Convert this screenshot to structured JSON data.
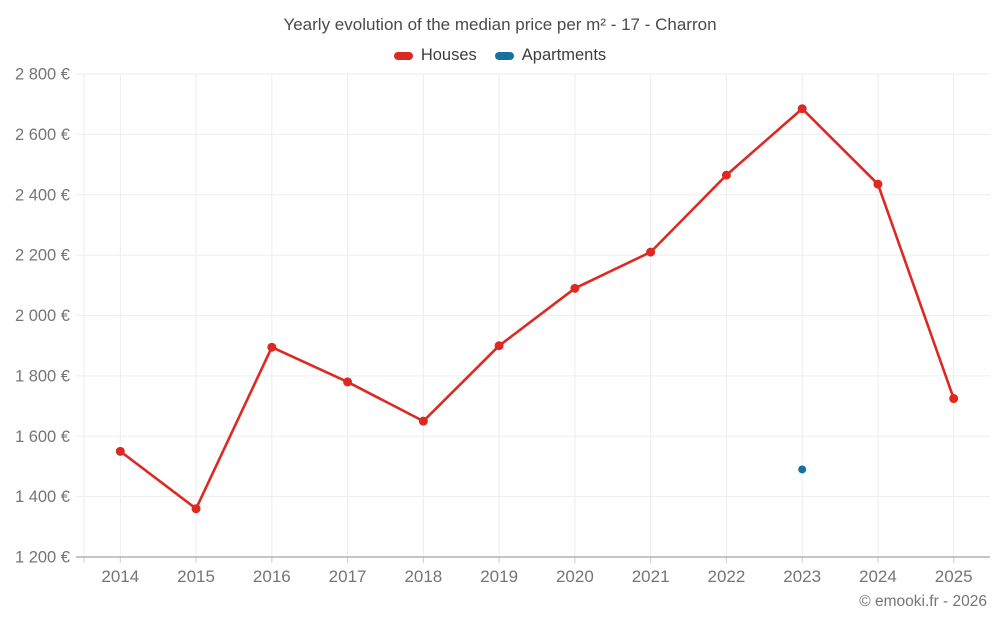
{
  "chart_data": {
    "type": "line",
    "title": "Yearly evolution of the median price per m² - 17 - Charron",
    "categories": [
      "2014",
      "2015",
      "2016",
      "2017",
      "2018",
      "2019",
      "2020",
      "2021",
      "2022",
      "2023",
      "2024",
      "2025"
    ],
    "series": [
      {
        "name": "Houses",
        "color": "#dc2a23",
        "marker_radius": 4.5,
        "values": [
          1550,
          1360,
          1895,
          1780,
          1650,
          1900,
          2090,
          2210,
          2465,
          2685,
          2435,
          1725
        ]
      },
      {
        "name": "Apartments",
        "color": "#16719f",
        "marker_radius": 4,
        "values": [
          null,
          null,
          null,
          null,
          null,
          null,
          null,
          null,
          null,
          1490,
          null,
          null
        ]
      }
    ],
    "xlabel": "",
    "ylabel": "",
    "ylim": [
      1200,
      2800
    ],
    "y_tick_step": 200,
    "y_tick_labels": [
      "1 200 €",
      "1 400 €",
      "1 600 €",
      "1 800 €",
      "2 000 €",
      "2 200 €",
      "2 400 €",
      "2 600 €",
      "2 800 €"
    ],
    "grid": true,
    "legend_position": "top"
  },
  "footer": {
    "copyright": "© emooki.fr - 2026"
  },
  "colors": {
    "grid": "#ededed",
    "axis": "#b3b3b3",
    "tick": "#cccccc",
    "label": "#757575",
    "title": "#4a4a4a"
  }
}
